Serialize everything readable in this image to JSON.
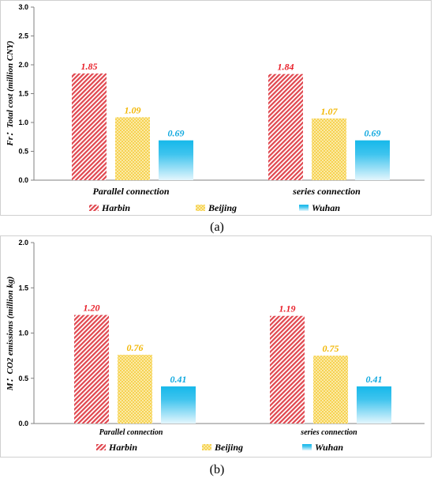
{
  "colors": {
    "Harbin": "#e0464e",
    "Beijing": "#f3c21b",
    "Wuhan": "#16b8ea"
  },
  "chart_data": [
    {
      "type": "bar",
      "panel_label": "(a)",
      "ylabel": "Fr：Total cost (million CNY)",
      "ylim": [
        0,
        3.0
      ],
      "yticks": [
        "0.0",
        "0.5",
        "1.0",
        "1.5",
        "2.0",
        "2.5",
        "3.0"
      ],
      "categories": [
        "Parallel connection",
        "series connection"
      ],
      "series": [
        {
          "name": "Harbin",
          "values": [
            1.85,
            1.84
          ],
          "labels": [
            "1.85",
            "1.84"
          ]
        },
        {
          "name": "Beijing",
          "values": [
            1.09,
            1.07
          ],
          "labels": [
            "1.09",
            "1.07"
          ]
        },
        {
          "name": "Wuhan",
          "values": [
            0.69,
            0.69
          ],
          "labels": [
            "0.69",
            "0.69"
          ]
        }
      ],
      "legend": "bottom"
    },
    {
      "type": "bar",
      "panel_label": "(b)",
      "ylabel": "M：CO2 emissions (million kg)",
      "ylim": [
        0,
        2.0
      ],
      "yticks": [
        "0.0",
        "0.5",
        "1.0",
        "1.5",
        "2.0"
      ],
      "categories": [
        "Parallel connection",
        "series connection"
      ],
      "series": [
        {
          "name": "Harbin",
          "values": [
            1.2,
            1.19
          ],
          "labels": [
            "1.20",
            "1.19"
          ]
        },
        {
          "name": "Beijing",
          "values": [
            0.76,
            0.75
          ],
          "labels": [
            "0.76",
            "0.75"
          ]
        },
        {
          "name": "Wuhan",
          "values": [
            0.41,
            0.41
          ],
          "labels": [
            "0.41",
            "0.41"
          ]
        }
      ],
      "legend": "bottom"
    }
  ]
}
